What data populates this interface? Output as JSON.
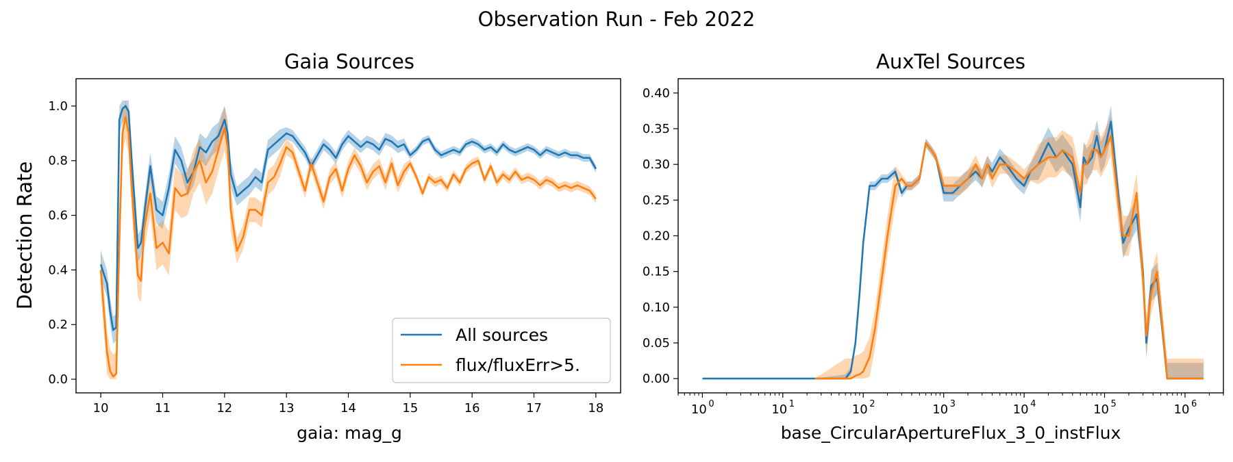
{
  "figure": {
    "suptitle": "Observation Run - Feb 2022"
  },
  "colors": {
    "all_sources": "#1f77b4",
    "flux_cut": "#ff7f0e",
    "all_band": "#1f77b4",
    "flux_band": "#ff7f0e",
    "axis": "#000000"
  },
  "chart_data": [
    {
      "type": "line",
      "title": "Gaia Sources",
      "xlabel": "gaia: mag_g",
      "ylabel": "Detection Rate",
      "xlim": [
        9.6,
        18.4
      ],
      "ylim": [
        -0.05,
        1.1
      ],
      "xticks": [
        10,
        11,
        12,
        13,
        14,
        15,
        16,
        17,
        18
      ],
      "yticks": [
        0.0,
        0.2,
        0.4,
        0.6,
        0.8,
        1.0
      ],
      "ytick_labels": [
        "0.0",
        "0.2",
        "0.4",
        "0.6",
        "0.8",
        "1.0"
      ],
      "legend": {
        "position": "lower right",
        "entries": [
          "All sources",
          "flux/fluxErr>5."
        ]
      },
      "series": [
        {
          "name": "All sources",
          "x": [
            10.0,
            10.1,
            10.15,
            10.2,
            10.25,
            10.3,
            10.35,
            10.4,
            10.45,
            10.5,
            10.6,
            10.65,
            10.7,
            10.8,
            10.9,
            11.0,
            11.1,
            11.2,
            11.3,
            11.4,
            11.5,
            11.6,
            11.7,
            11.8,
            11.9,
            12.0,
            12.05,
            12.1,
            12.2,
            12.3,
            12.4,
            12.5,
            12.6,
            12.7,
            12.8,
            12.9,
            13.0,
            13.1,
            13.2,
            13.3,
            13.4,
            13.5,
            13.6,
            13.7,
            13.8,
            13.9,
            14.0,
            14.1,
            14.2,
            14.3,
            14.4,
            14.5,
            14.6,
            14.7,
            14.8,
            14.9,
            15.0,
            15.1,
            15.2,
            15.3,
            15.4,
            15.5,
            15.6,
            15.7,
            15.8,
            15.9,
            16.0,
            16.1,
            16.2,
            16.3,
            16.4,
            16.5,
            16.6,
            16.7,
            16.8,
            16.9,
            17.0,
            17.1,
            17.2,
            17.3,
            17.4,
            17.5,
            17.6,
            17.7,
            17.8,
            17.9,
            18.0
          ],
          "y": [
            0.42,
            0.35,
            0.25,
            0.18,
            0.19,
            0.95,
            0.99,
            1.0,
            0.98,
            0.8,
            0.48,
            0.5,
            0.6,
            0.78,
            0.62,
            0.6,
            0.7,
            0.84,
            0.8,
            0.72,
            0.76,
            0.85,
            0.83,
            0.87,
            0.89,
            0.95,
            0.9,
            0.75,
            0.67,
            0.69,
            0.71,
            0.74,
            0.72,
            0.84,
            0.86,
            0.88,
            0.9,
            0.89,
            0.86,
            0.83,
            0.78,
            0.82,
            0.86,
            0.84,
            0.81,
            0.86,
            0.89,
            0.87,
            0.85,
            0.87,
            0.86,
            0.84,
            0.88,
            0.87,
            0.85,
            0.86,
            0.82,
            0.84,
            0.87,
            0.88,
            0.84,
            0.82,
            0.83,
            0.84,
            0.83,
            0.86,
            0.87,
            0.86,
            0.84,
            0.85,
            0.83,
            0.86,
            0.84,
            0.83,
            0.84,
            0.85,
            0.84,
            0.82,
            0.84,
            0.83,
            0.82,
            0.83,
            0.82,
            0.82,
            0.81,
            0.81,
            0.77
          ]
        },
        {
          "name": "flux/fluxErr>5.",
          "x": [
            10.0,
            10.1,
            10.15,
            10.2,
            10.25,
            10.3,
            10.35,
            10.4,
            10.45,
            10.5,
            10.6,
            10.65,
            10.7,
            10.8,
            10.9,
            11.0,
            11.1,
            11.2,
            11.3,
            11.4,
            11.5,
            11.6,
            11.7,
            11.8,
            11.9,
            12.0,
            12.05,
            12.1,
            12.2,
            12.3,
            12.4,
            12.5,
            12.6,
            12.7,
            12.8,
            12.9,
            13.0,
            13.1,
            13.2,
            13.3,
            13.4,
            13.5,
            13.6,
            13.7,
            13.8,
            13.9,
            14.0,
            14.1,
            14.2,
            14.3,
            14.4,
            14.5,
            14.6,
            14.7,
            14.8,
            14.9,
            15.0,
            15.1,
            15.2,
            15.3,
            15.4,
            15.5,
            15.6,
            15.7,
            15.8,
            15.9,
            16.0,
            16.1,
            16.2,
            16.3,
            16.4,
            16.5,
            16.6,
            16.7,
            16.8,
            16.9,
            17.0,
            17.1,
            17.2,
            17.3,
            17.4,
            17.5,
            17.6,
            17.7,
            17.8,
            17.9,
            18.0
          ],
          "y": [
            0.4,
            0.1,
            0.03,
            0.01,
            0.02,
            0.5,
            0.9,
            0.96,
            0.9,
            0.7,
            0.38,
            0.36,
            0.55,
            0.68,
            0.48,
            0.5,
            0.46,
            0.7,
            0.67,
            0.68,
            0.76,
            0.8,
            0.72,
            0.76,
            0.84,
            0.92,
            0.85,
            0.62,
            0.47,
            0.52,
            0.62,
            0.62,
            0.6,
            0.72,
            0.74,
            0.79,
            0.85,
            0.83,
            0.76,
            0.69,
            0.79,
            0.72,
            0.65,
            0.74,
            0.77,
            0.69,
            0.77,
            0.82,
            0.78,
            0.72,
            0.76,
            0.78,
            0.72,
            0.79,
            0.71,
            0.76,
            0.79,
            0.74,
            0.68,
            0.74,
            0.72,
            0.73,
            0.7,
            0.75,
            0.72,
            0.77,
            0.79,
            0.8,
            0.73,
            0.78,
            0.72,
            0.75,
            0.73,
            0.76,
            0.73,
            0.74,
            0.73,
            0.71,
            0.73,
            0.72,
            0.7,
            0.71,
            0.7,
            0.71,
            0.7,
            0.69,
            0.66
          ]
        }
      ]
    },
    {
      "type": "line",
      "title": "AuxTel Sources",
      "xlabel": "base_CircularApertureFlux_3_0_instFlux",
      "xscale": "log",
      "xlim": [
        0.5,
        3000000
      ],
      "ylim": [
        -0.02,
        0.42
      ],
      "xticks": [
        1,
        10,
        100,
        1000,
        10000,
        100000,
        1000000
      ],
      "xtick_labels": [
        {
          "base": "10",
          "exp": "0"
        },
        {
          "base": "10",
          "exp": "1"
        },
        {
          "base": "10",
          "exp": "2"
        },
        {
          "base": "10",
          "exp": "3"
        },
        {
          "base": "10",
          "exp": "4"
        },
        {
          "base": "10",
          "exp": "5"
        },
        {
          "base": "10",
          "exp": "6"
        }
      ],
      "yticks": [
        0.0,
        0.05,
        0.1,
        0.15,
        0.2,
        0.25,
        0.3,
        0.35,
        0.4
      ],
      "ytick_labels": [
        "0.00",
        "0.05",
        "0.10",
        "0.15",
        "0.20",
        "0.25",
        "0.30",
        "0.35",
        "0.40"
      ],
      "series": [
        {
          "name": "All sources",
          "x": [
            1,
            25,
            60,
            70,
            80,
            90,
            100,
            120,
            140,
            170,
            200,
            250,
            300,
            350,
            400,
            500,
            600,
            700,
            800,
            1000,
            1300,
            1600,
            2000,
            2500,
            3000,
            3500,
            4000,
            5000,
            6000,
            8000,
            10000,
            12000,
            15000,
            20000,
            25000,
            30000,
            40000,
            50000,
            55000,
            60000,
            70000,
            80000,
            90000,
            100000,
            120000,
            150000,
            170000,
            200000,
            250000,
            300000,
            330000,
            380000,
            450000,
            600000,
            1700000
          ],
          "y": [
            0,
            0,
            0,
            0.01,
            0.05,
            0.12,
            0.19,
            0.27,
            0.27,
            0.28,
            0.28,
            0.29,
            0.26,
            0.27,
            0.27,
            0.28,
            0.33,
            0.32,
            0.31,
            0.26,
            0.26,
            0.27,
            0.28,
            0.29,
            0.28,
            0.3,
            0.29,
            0.31,
            0.3,
            0.28,
            0.27,
            0.29,
            0.3,
            0.33,
            0.31,
            0.32,
            0.3,
            0.24,
            0.31,
            0.3,
            0.31,
            0.34,
            0.31,
            0.32,
            0.36,
            0.25,
            0.19,
            0.21,
            0.23,
            0.15,
            0.05,
            0.13,
            0.14,
            0,
            0
          ]
        },
        {
          "name": "flux/fluxErr>5.",
          "x": [
            25,
            60,
            70,
            80,
            90,
            100,
            120,
            140,
            170,
            200,
            250,
            300,
            350,
            400,
            500,
            600,
            700,
            800,
            1000,
            1300,
            1600,
            2000,
            2500,
            3000,
            3500,
            4000,
            5000,
            6000,
            8000,
            10000,
            12000,
            15000,
            20000,
            25000,
            30000,
            40000,
            50000,
            55000,
            60000,
            70000,
            80000,
            90000,
            100000,
            120000,
            150000,
            170000,
            200000,
            250000,
            300000,
            330000,
            380000,
            450000,
            600000,
            1700000
          ],
          "y": [
            0,
            0,
            0,
            0.004,
            0.006,
            0.01,
            0.03,
            0.07,
            0.14,
            0.2,
            0.27,
            0.28,
            0.27,
            0.27,
            0.28,
            0.33,
            0.32,
            0.31,
            0.27,
            0.27,
            0.27,
            0.28,
            0.3,
            0.28,
            0.3,
            0.28,
            0.3,
            0.3,
            0.29,
            0.28,
            0.29,
            0.3,
            0.31,
            0.31,
            0.32,
            0.31,
            0.26,
            0.3,
            0.3,
            0.32,
            0.32,
            0.31,
            0.32,
            0.34,
            0.24,
            0.2,
            0.2,
            0.26,
            0.14,
            0.06,
            0.12,
            0.15,
            0,
            0
          ]
        }
      ]
    }
  ]
}
